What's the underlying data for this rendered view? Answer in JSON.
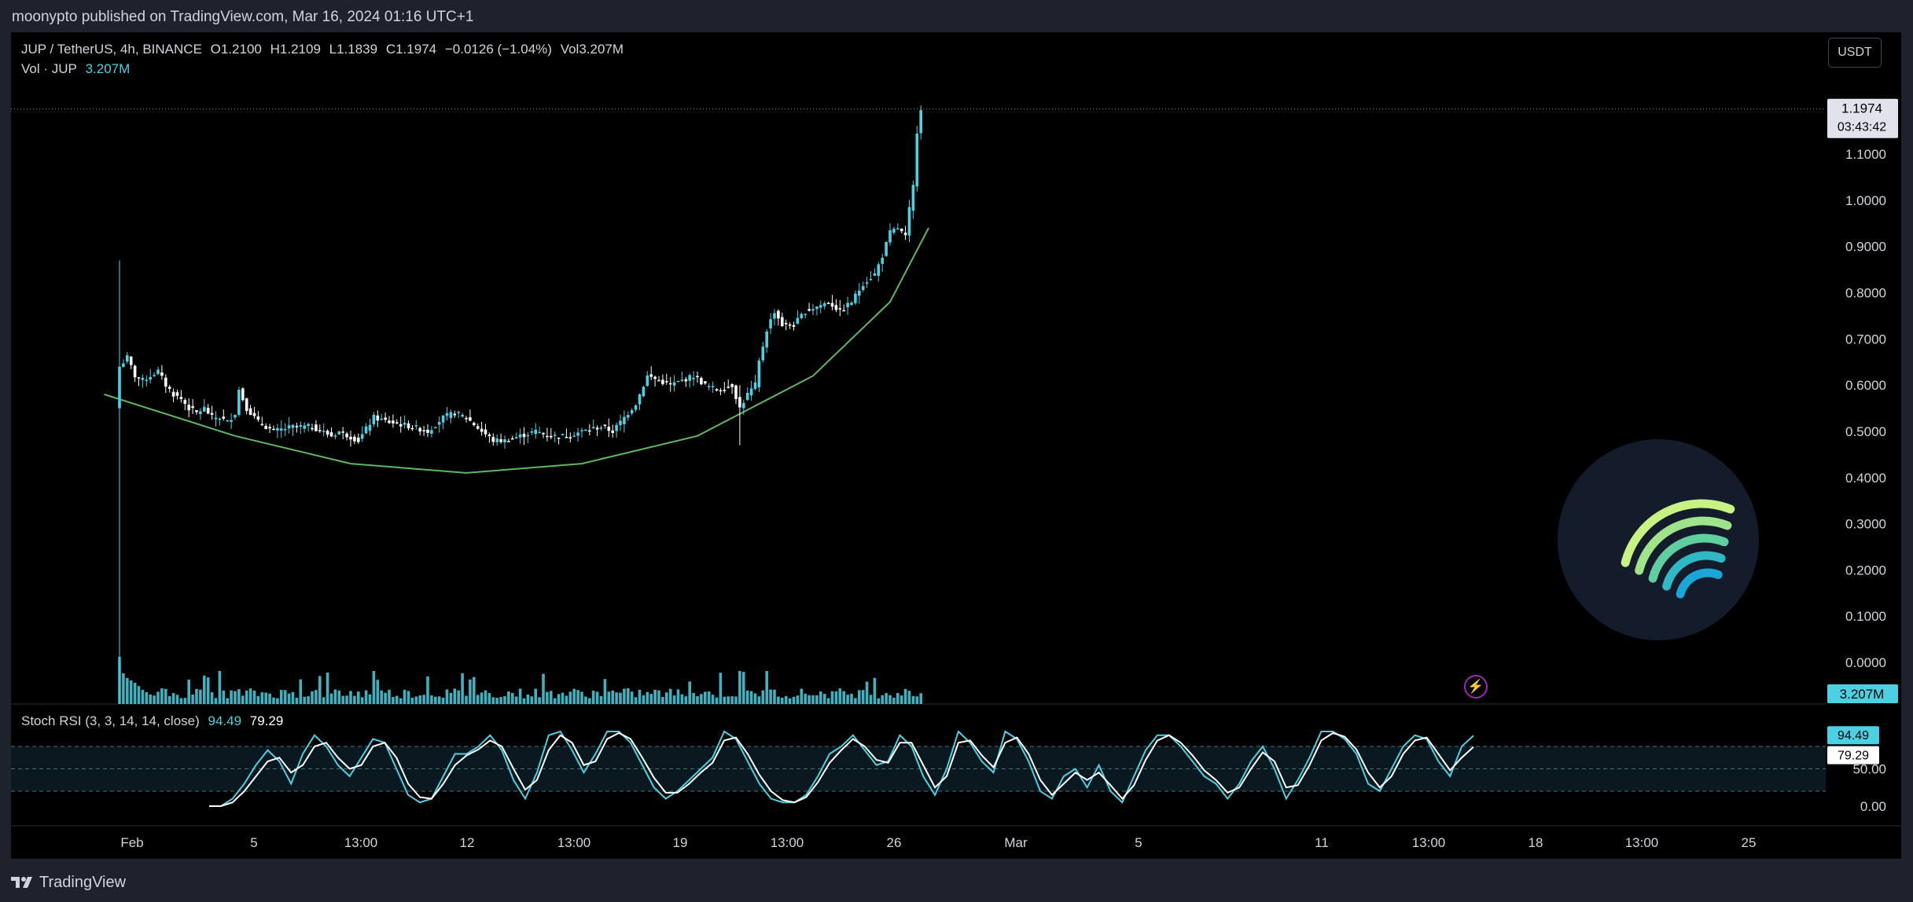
{
  "header": {
    "published_by": "moonypto published on TradingView.com, Mar 16, 2024 01:16 UTC+1"
  },
  "legend": {
    "symbol": "JUP / TetherUS, 4h, BINANCE",
    "open": "O1.2100",
    "high": "H1.2109",
    "low": "L1.1839",
    "close": "C1.1974",
    "change": "−0.0126 (−1.04%)",
    "vol": "Vol3.207M",
    "vol_label": "Vol · JUP",
    "vol_value": "3.207M",
    "stoch_label": "Stoch RSI (3, 3, 14, 14, close)",
    "stoch_k": "94.49",
    "stoch_d": "79.29"
  },
  "currency_button": "USDT",
  "price_label": {
    "price": "1.1974",
    "countdown": "03:43:42"
  },
  "vol_badge": "3.207M",
  "stoch_badges": {
    "k": "94.49",
    "d": "79.29"
  },
  "footer": {
    "brand": "TradingView"
  },
  "colors": {
    "up": "#4dd0e1",
    "down": "#ffffff",
    "curve": "#5fb85f",
    "background": "#000000"
  },
  "icons": [
    "bolt-icon",
    "tradingview-logo-icon",
    "jupiter-logo-icon"
  ],
  "chart_data": [
    {
      "type": "candlestick",
      "title": "JUP / TetherUS, 4h, BINANCE",
      "x_ticks": [
        "Feb",
        "5",
        "13:00",
        "12",
        "13:00",
        "19",
        "13:00",
        "26",
        "Mar",
        "5",
        "11",
        "13:00",
        "18",
        "13:00",
        "25"
      ],
      "y_ticks": [
        "0.0000",
        "0.1000",
        "0.2000",
        "0.3000",
        "0.4000",
        "0.5000",
        "0.6000",
        "0.7000",
        "0.8000",
        "0.9000",
        "1.0000",
        "1.1000"
      ],
      "ylim": [
        -0.09,
        1.27
      ],
      "last_price": 1.1974,
      "close_path": [
        [
          0,
          0.64
        ],
        [
          2,
          0.66
        ],
        [
          4,
          0.62
        ],
        [
          6,
          0.61
        ],
        [
          8,
          0.62
        ],
        [
          10,
          0.63
        ],
        [
          12,
          0.6
        ],
        [
          14,
          0.58
        ],
        [
          16,
          0.57
        ],
        [
          18,
          0.55
        ],
        [
          20,
          0.54
        ],
        [
          22,
          0.55
        ],
        [
          24,
          0.53
        ],
        [
          26,
          0.53
        ],
        [
          28,
          0.52
        ],
        [
          30,
          0.54
        ],
        [
          31,
          0.59
        ],
        [
          33,
          0.55
        ],
        [
          36,
          0.52
        ],
        [
          40,
          0.5
        ],
        [
          45,
          0.51
        ],
        [
          50,
          0.51
        ],
        [
          55,
          0.49
        ],
        [
          57,
          0.5
        ],
        [
          62,
          0.48
        ],
        [
          66,
          0.53
        ],
        [
          70,
          0.52
        ],
        [
          76,
          0.51
        ],
        [
          80,
          0.5
        ],
        [
          84,
          0.53
        ],
        [
          87,
          0.54
        ],
        [
          90,
          0.53
        ],
        [
          94,
          0.5
        ],
        [
          97,
          0.48
        ],
        [
          100,
          0.48
        ],
        [
          104,
          0.49
        ],
        [
          108,
          0.5
        ],
        [
          112,
          0.49
        ],
        [
          116,
          0.49
        ],
        [
          120,
          0.5
        ],
        [
          125,
          0.51
        ],
        [
          128,
          0.5
        ],
        [
          130,
          0.52
        ],
        [
          134,
          0.56
        ],
        [
          137,
          0.62
        ],
        [
          140,
          0.61
        ],
        [
          143,
          0.6
        ],
        [
          146,
          0.61
        ],
        [
          149,
          0.62
        ],
        [
          152,
          0.6
        ],
        [
          155,
          0.59
        ],
        [
          159,
          0.6
        ],
        [
          161,
          0.55
        ],
        [
          163,
          0.58
        ],
        [
          165,
          0.6
        ],
        [
          166,
          0.65
        ],
        [
          168,
          0.72
        ],
        [
          170,
          0.76
        ],
        [
          172,
          0.73
        ],
        [
          175,
          0.73
        ],
        [
          178,
          0.76
        ],
        [
          181,
          0.77
        ],
        [
          184,
          0.78
        ],
        [
          187,
          0.76
        ],
        [
          190,
          0.78
        ],
        [
          193,
          0.82
        ],
        [
          196,
          0.84
        ],
        [
          198,
          0.88
        ],
        [
          200,
          0.93
        ],
        [
          202,
          0.94
        ],
        [
          204,
          0.92
        ],
        [
          205,
          0.98
        ],
        [
          206,
          1.03
        ],
        [
          207,
          1.15
        ],
        [
          208,
          1.2
        ]
      ],
      "wick_extremes": [
        {
          "bar": 0,
          "high": 0.87,
          "low": -0.09
        },
        {
          "bar": 161,
          "high": 0.6,
          "low": 0.47
        }
      ],
      "rounded_bottom_curve": [
        [
          -4,
          0.58
        ],
        [
          30,
          0.49
        ],
        [
          60,
          0.43
        ],
        [
          90,
          0.41
        ],
        [
          120,
          0.43
        ],
        [
          150,
          0.49
        ],
        [
          180,
          0.62
        ],
        [
          200,
          0.78
        ],
        [
          210,
          0.94
        ]
      ]
    },
    {
      "type": "bar",
      "title": "Vol · JUP",
      "last_value": "3.207M",
      "values_relative": [
        1.0,
        0.65,
        0.55,
        0.5,
        0.45,
        0.38,
        0.3,
        0.25,
        0.2,
        0.18
      ]
    },
    {
      "type": "line",
      "title": "Stoch RSI (3, 3, 14, 14, close)",
      "y_ticks": [
        "0.00",
        "50.00"
      ],
      "ylim": [
        0,
        100
      ],
      "bands": [
        20,
        50,
        80
      ],
      "series": [
        {
          "name": "%K",
          "last": 94.49,
          "values": [
            0,
            0,
            10,
            30,
            55,
            75,
            60,
            30,
            70,
            95,
            80,
            55,
            40,
            65,
            90,
            85,
            50,
            15,
            5,
            10,
            40,
            70,
            70,
            80,
            95,
            75,
            35,
            10,
            45,
            95,
            100,
            75,
            45,
            70,
            100,
            100,
            85,
            55,
            25,
            10,
            20,
            35,
            50,
            65,
            100,
            90,
            60,
            30,
            10,
            5,
            5,
            15,
            40,
            70,
            80,
            95,
            75,
            55,
            60,
            95,
            80,
            40,
            15,
            50,
            100,
            85,
            60,
            45,
            100,
            90,
            60,
            20,
            10,
            40,
            50,
            25,
            55,
            20,
            5,
            40,
            75,
            95,
            95,
            80,
            60,
            40,
            30,
            10,
            30,
            60,
            80,
            50,
            10,
            35,
            65,
            100,
            100,
            90,
            70,
            30,
            20,
            50,
            80,
            95,
            90,
            60,
            40,
            80,
            94.49
          ]
        },
        {
          "name": "%D",
          "last": 79.29,
          "values": [
            0,
            0,
            5,
            20,
            40,
            60,
            65,
            45,
            55,
            80,
            85,
            65,
            50,
            55,
            80,
            85,
            65,
            30,
            12,
            10,
            30,
            55,
            68,
            76,
            88,
            80,
            50,
            22,
            35,
            75,
            95,
            85,
            55,
            60,
            90,
            98,
            90,
            65,
            38,
            18,
            18,
            30,
            45,
            58,
            88,
            92,
            70,
            42,
            20,
            8,
            5,
            12,
            32,
            58,
            75,
            90,
            80,
            62,
            58,
            85,
            85,
            55,
            25,
            40,
            85,
            88,
            68,
            52,
            85,
            92,
            70,
            35,
            15,
            30,
            45,
            35,
            45,
            28,
            10,
            28,
            62,
            88,
            95,
            85,
            68,
            48,
            35,
            18,
            25,
            50,
            72,
            60,
            25,
            28,
            55,
            88,
            98,
            93,
            76,
            45,
            25,
            40,
            70,
            88,
            92,
            70,
            48,
            65,
            79.29
          ]
        }
      ]
    }
  ]
}
